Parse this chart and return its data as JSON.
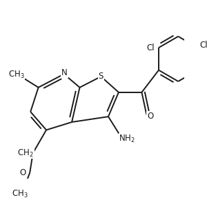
{
  "bg_color": "#ffffff",
  "line_color": "#1a1a1a",
  "line_width": 1.4,
  "font_size": 8.5,
  "dbo": 0.05,
  "figsize": [
    3.0,
    2.9
  ],
  "dpi": 100,
  "xlim": [
    0.0,
    3.0
  ],
  "ylim": [
    0.0,
    2.9
  ]
}
